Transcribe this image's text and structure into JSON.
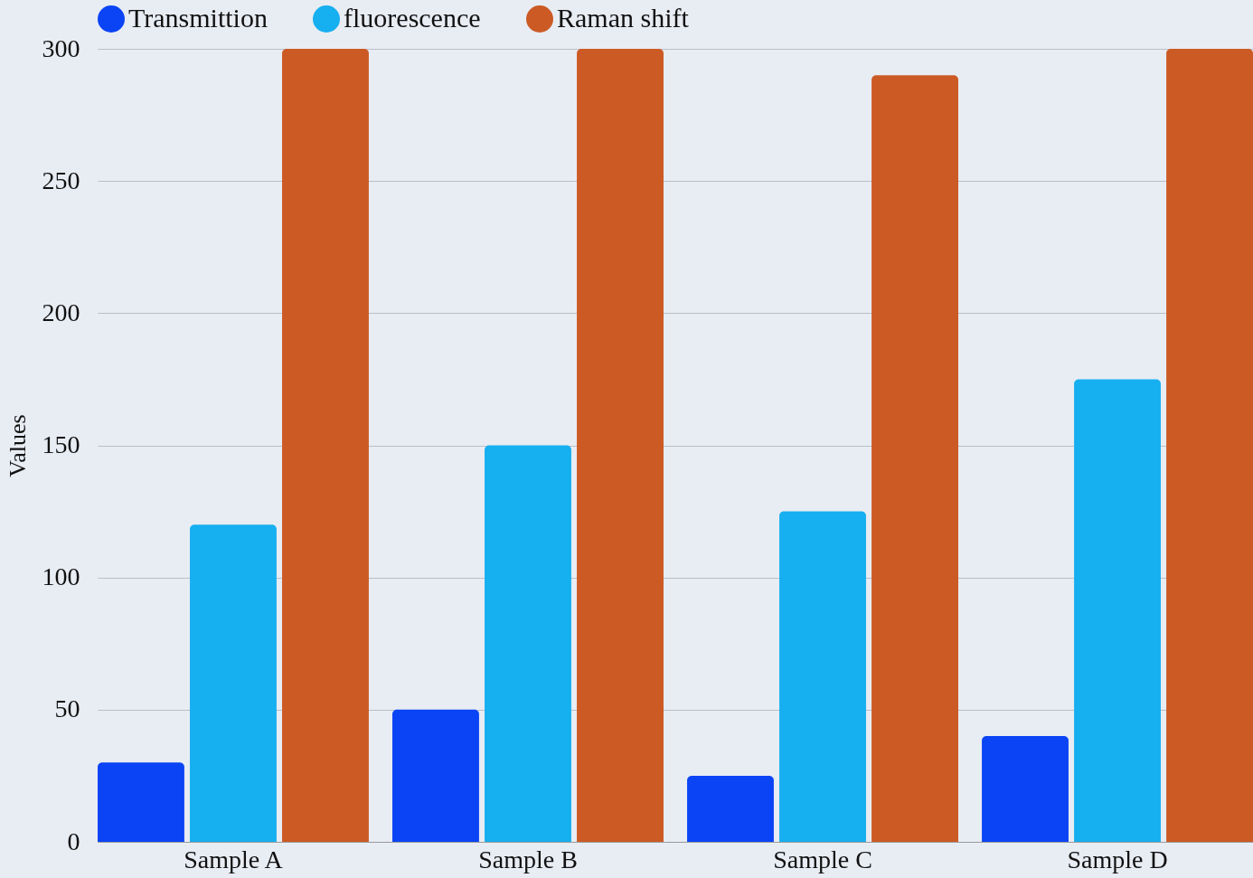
{
  "chart_data": {
    "type": "bar",
    "ylabel": "Values",
    "categories": [
      "Sample A",
      "Sample B",
      "Sample C",
      "Sample D"
    ],
    "series": [
      {
        "name": "Transmittion",
        "color": "#0a44f5",
        "values": [
          30,
          50,
          25,
          40
        ]
      },
      {
        "name": "fluorescence",
        "color": "#16aff0",
        "values": [
          120,
          150,
          125,
          175
        ]
      },
      {
        "name": "Raman shift",
        "color": "#cc5a24",
        "values": [
          300,
          300,
          290,
          300
        ]
      }
    ],
    "ylim": [
      0,
      300
    ],
    "yticks": [
      0,
      50,
      100,
      150,
      200,
      250,
      300
    ],
    "grid": "y",
    "legend": "top"
  }
}
